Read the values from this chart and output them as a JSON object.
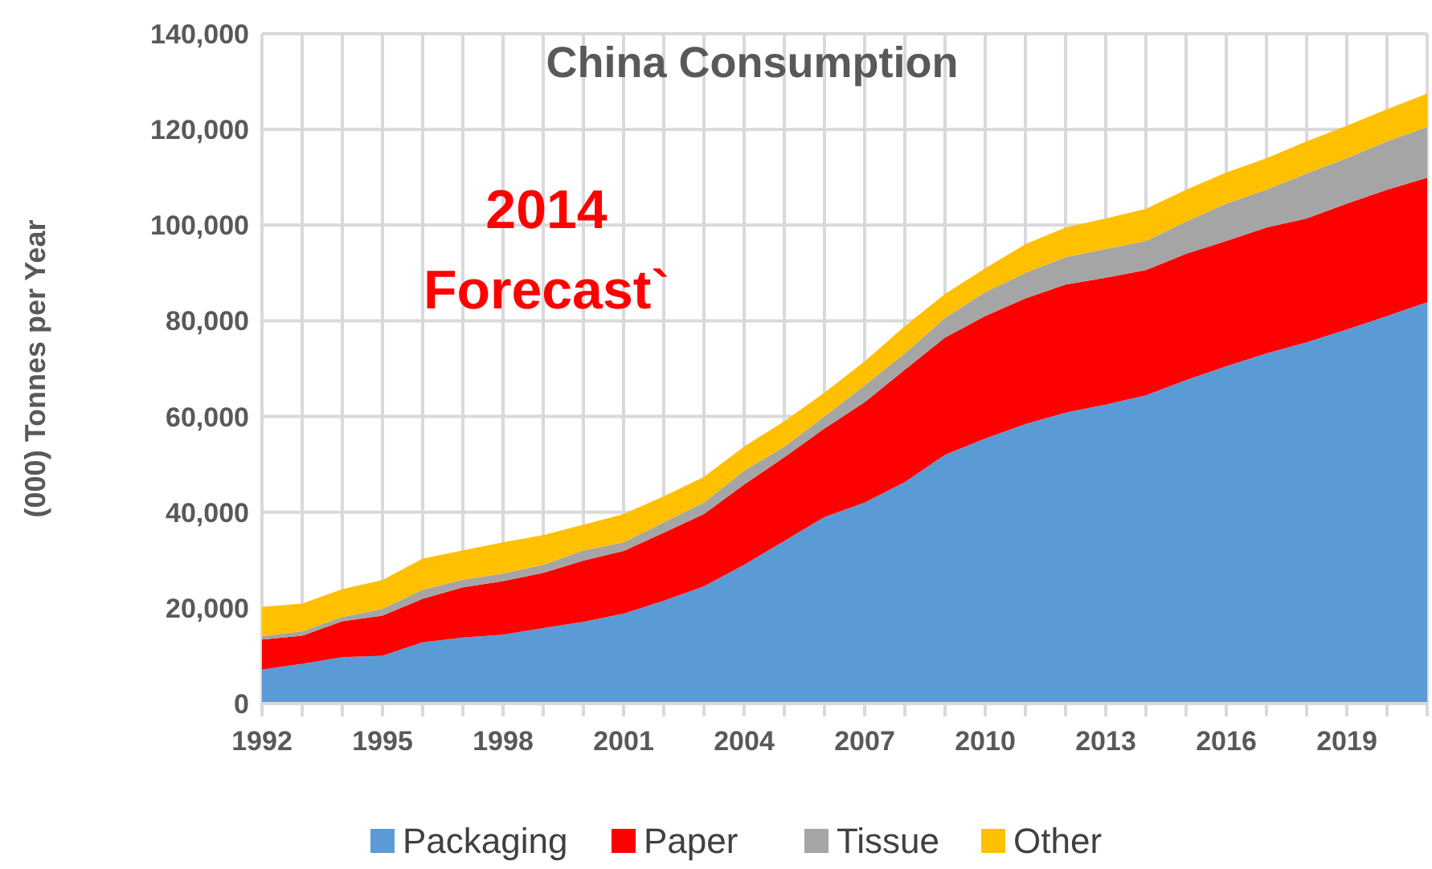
{
  "chart_data": {
    "type": "area",
    "stacked": true,
    "title": "China Consumption",
    "ylabel": "(000) Tonnes per Year",
    "annotations": [
      "2014",
      "Forecast`"
    ],
    "x": [
      1992,
      1993,
      1994,
      1995,
      1996,
      1997,
      1998,
      1999,
      2000,
      2001,
      2002,
      2003,
      2004,
      2005,
      2006,
      2007,
      2008,
      2009,
      2010,
      2011,
      2012,
      2013,
      2014,
      2015,
      2016,
      2017,
      2018,
      2019,
      2020,
      2021
    ],
    "series": [
      {
        "name": "Packaging",
        "color": "#5b9bd5",
        "values": [
          7100,
          8300,
          9700,
          10000,
          12800,
          13800,
          14400,
          15800,
          17100,
          18800,
          21500,
          24500,
          29000,
          34000,
          39000,
          42000,
          46300,
          52000,
          55400,
          58400,
          60800,
          62500,
          64400,
          67600,
          70500,
          73200,
          75500,
          78200,
          81000,
          83900
        ]
      },
      {
        "name": "Paper",
        "color": "#ff0000",
        "values": [
          6300,
          5900,
          7500,
          8400,
          9100,
          10500,
          11200,
          11500,
          12800,
          13100,
          14200,
          15100,
          16800,
          17500,
          18500,
          21000,
          23500,
          24500,
          25600,
          26300,
          26800,
          26500,
          26200,
          26400,
          26200,
          26300,
          25900,
          26300,
          26400,
          26000
        ]
      },
      {
        "name": "Tissue",
        "color": "#a5a5a5",
        "values": [
          700,
          900,
          900,
          1400,
          1900,
          1600,
          1600,
          1700,
          2100,
          1800,
          2200,
          2400,
          2900,
          2200,
          2500,
          3500,
          3400,
          4100,
          5000,
          5300,
          5700,
          6000,
          6100,
          6700,
          7800,
          7900,
          9400,
          9500,
          10100,
          10600
        ]
      },
      {
        "name": "Other",
        "color": "#ffc000",
        "values": [
          6100,
          5800,
          5800,
          6000,
          6500,
          6100,
          6500,
          6200,
          5400,
          5900,
          5400,
          5400,
          5000,
          5300,
          5000,
          5000,
          5700,
          5000,
          5000,
          6000,
          6200,
          6400,
          6700,
          6700,
          6500,
          6600,
          6700,
          6800,
          6700,
          7000
        ]
      }
    ],
    "xlim": [
      1992,
      2021
    ],
    "xticks": [
      1992,
      {
        "value": 1993,
        "label": null
      },
      {
        "value": 1994,
        "label": null
      },
      1995,
      {
        "value": 1996,
        "label": null
      },
      {
        "value": 1997,
        "label": null
      },
      1998,
      {
        "value": 1999,
        "label": null
      },
      {
        "value": 2000,
        "label": null
      },
      2001,
      {
        "value": 2002,
        "label": null
      },
      {
        "value": 2003,
        "label": null
      },
      2004,
      {
        "value": 2005,
        "label": null
      },
      {
        "value": 2006,
        "label": null
      },
      2007,
      {
        "value": 2008,
        "label": null
      },
      {
        "value": 2009,
        "label": null
      },
      2010,
      {
        "value": 2011,
        "label": null
      },
      {
        "value": 2012,
        "label": null
      },
      2013,
      {
        "value": 2014,
        "label": null
      },
      {
        "value": 2015,
        "label": null
      },
      2016,
      {
        "value": 2017,
        "label": null
      },
      {
        "value": 2018,
        "label": null
      },
      2019,
      {
        "value": 2020,
        "label": null
      },
      {
        "value": 2021,
        "label": null
      }
    ],
    "ylim": [
      0,
      140000
    ],
    "yticks": [
      0,
      {
        "value": 20000,
        "label": "20,000"
      },
      {
        "value": 40000,
        "label": "40,000"
      },
      {
        "value": 60000,
        "label": "60,000"
      },
      {
        "value": 80000,
        "label": "80,000"
      },
      {
        "value": 100000,
        "label": "100,000"
      },
      {
        "value": 120000,
        "label": "120,000"
      },
      {
        "value": 140000,
        "label": "140,000"
      }
    ],
    "grid": true,
    "legend": "bottom"
  }
}
